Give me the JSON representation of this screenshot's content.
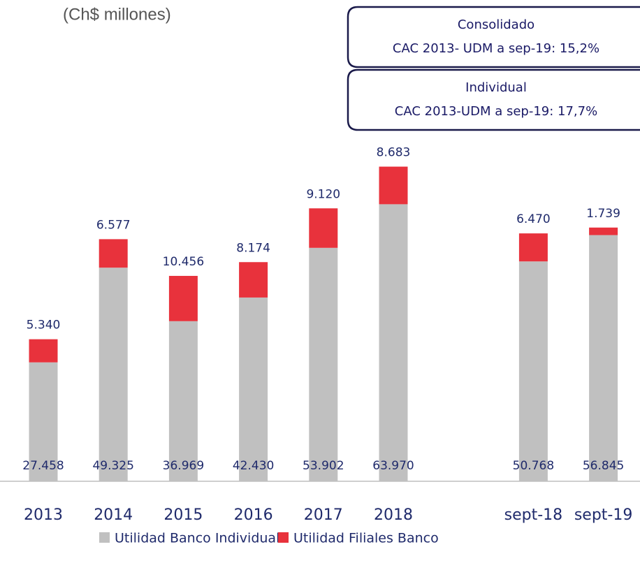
{
  "chart_data": {
    "type": "stacked_bar",
    "subtitle": "(Ch$ millones)",
    "annotations": [
      [
        "Consolidado",
        "CAC 2013- UDM a sep-19: 15,2%"
      ],
      [
        "Individual",
        "CAC 2013-UDM a sep-19: 17,7%"
      ]
    ],
    "categories": [
      "2013",
      "2014",
      "2015",
      "2016",
      "2017",
      "2018",
      null,
      "sept-18",
      "sept-19"
    ],
    "series": [
      {
        "name": "Utilidad Banco Individual",
        "color": "#c0c0c0",
        "values": [
          27458,
          49325,
          36969,
          42430,
          53902,
          63970,
          null,
          50768,
          56845
        ],
        "value_labels": [
          "27.458",
          "49.325",
          "36.969",
          "42.430",
          "53.902",
          "63.970",
          null,
          "50.768",
          "56.845"
        ]
      },
      {
        "name": "Utilidad Filiales Banco",
        "color": "#e8323c",
        "values": [
          5340,
          6577,
          10456,
          8174,
          9120,
          8683,
          null,
          6470,
          1739
        ],
        "value_labels": [
          "5.340",
          "6.577",
          "10.456",
          "8.174",
          "9.120",
          "8.683",
          null,
          "6.470",
          "1.739"
        ]
      }
    ]
  }
}
